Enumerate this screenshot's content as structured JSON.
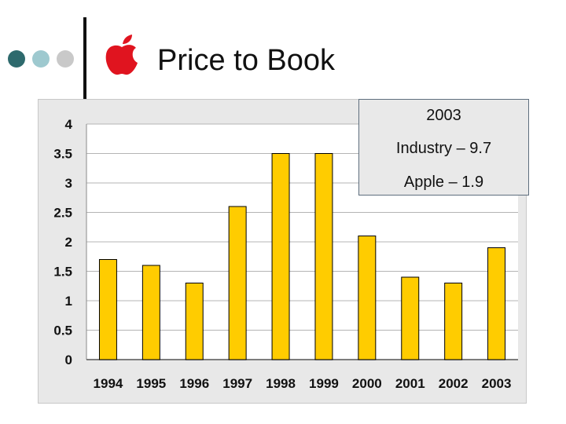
{
  "slide": {
    "title": "Price to Book",
    "bullet_colors": [
      "#2e6a6d",
      "#9ec9cf",
      "#c9c9c9"
    ],
    "logo_icon": "apple-logo-icon",
    "logo_color": "#e0141f"
  },
  "callout": {
    "line1": "2003",
    "line2": "Industry – 9.7",
    "line3": "Apple – 1.9"
  },
  "chart_data": {
    "type": "bar",
    "title": "",
    "xlabel": "",
    "ylabel": "",
    "categories": [
      "1994",
      "1995",
      "1996",
      "1997",
      "1998",
      "1999",
      "2000",
      "2001",
      "2002",
      "2003"
    ],
    "values": [
      1.7,
      1.6,
      1.3,
      2.6,
      3.5,
      3.5,
      2.1,
      1.4,
      1.3,
      1.9
    ],
    "ylim": [
      0,
      4
    ],
    "yticks": [
      0,
      0.5,
      1,
      1.5,
      2,
      2.5,
      3,
      3.5,
      4
    ],
    "ytick_labels": [
      "0",
      "0.5",
      "1",
      "1.5",
      "2",
      "2.5",
      "3",
      "3.5",
      "4"
    ],
    "grid": true,
    "legend": "none",
    "bar_color": "#ffcc00",
    "bar_edge_color": "#000000",
    "plot_background": "#ffffff",
    "grid_color": "#b4b4b4"
  }
}
